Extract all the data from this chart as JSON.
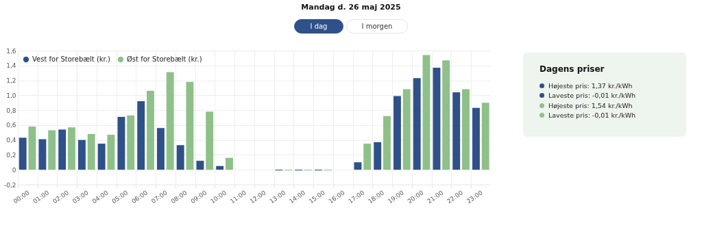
{
  "chart_data": {
    "type": "bar",
    "title": "Mandag d. 26 maj 2025",
    "categories": [
      "00:00",
      "01:00",
      "02:00",
      "03:00",
      "04:00",
      "05:00",
      "06:00",
      "07:00",
      "08:00",
      "09:00",
      "10:00",
      "11:00",
      "12:00",
      "13:00",
      "14:00",
      "15:00",
      "16:00",
      "17:00",
      "18:00",
      "19:00",
      "20:00",
      "21:00",
      "22:00",
      "23:00"
    ],
    "series": [
      {
        "name": "Vest for Storebælt (kr.)",
        "color": "#2f5189",
        "values": [
          0.43,
          0.41,
          0.54,
          0.4,
          0.35,
          0.71,
          0.92,
          0.56,
          0.33,
          0.12,
          0.05,
          0,
          0,
          -0.01,
          -0.01,
          -0.01,
          0,
          0.1,
          0.37,
          0.99,
          1.23,
          1.37,
          1.04,
          0.83
        ]
      },
      {
        "name": "Øst for Storebælt (kr.)",
        "color": "#8fc08a",
        "values": [
          0.58,
          0.53,
          0.57,
          0.48,
          0.47,
          0.73,
          1.06,
          1.31,
          1.18,
          0.78,
          0.16,
          0,
          0,
          -0.01,
          -0.01,
          -0.01,
          0,
          0.35,
          0.72,
          1.08,
          1.54,
          1.47,
          1.08,
          0.9
        ]
      }
    ],
    "ylim": [
      -0.2,
      1.6
    ],
    "yticks": [
      {
        "value": -0.2,
        "label": "-0,2"
      },
      {
        "value": 0,
        "label": "0"
      },
      {
        "value": 0.2,
        "label": "0,2"
      },
      {
        "value": 0.4,
        "label": "0,4"
      },
      {
        "value": 0.6,
        "label": "0,6"
      },
      {
        "value": 0.8,
        "label": "0,8"
      },
      {
        "value": 1.0,
        "label": "1,0"
      },
      {
        "value": 1.2,
        "label": "1,2"
      },
      {
        "value": 1.4,
        "label": "1,4"
      },
      {
        "value": 1.6,
        "label": "1,6"
      }
    ],
    "grid": true,
    "legend": "top left",
    "annotations": [
      "I dag",
      "I morgen",
      "Dagens priser",
      "Højeste pris: 1,37 kr./kWh",
      "Laveste pris: -0,01 kr./kWh",
      "Højeste pris: 1,54 kr./kWh",
      "Laveste pris: -0,01 kr./kWh"
    ]
  }
}
